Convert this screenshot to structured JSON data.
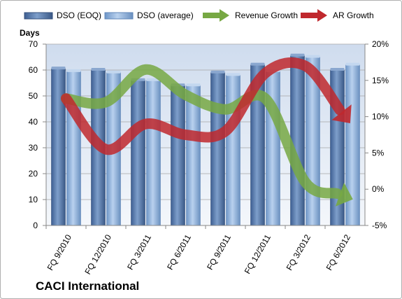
{
  "chart_data": {
    "type": "bar",
    "title": "CACI International",
    "ylabel": "Days",
    "categories": [
      "FQ 9/2010",
      "FQ 12/2010",
      "FQ 3/2011",
      "FQ 6/2011",
      "FQ 9/2011",
      "FQ 12/2011",
      "FQ 3/2012",
      "FQ 6/2012"
    ],
    "ylim": [
      0,
      70
    ],
    "yticks": [
      0,
      10,
      20,
      30,
      40,
      50,
      60,
      70
    ],
    "y2lim": [
      -5,
      20
    ],
    "y2ticks": [
      "-5%",
      "0%",
      "5%",
      "10%",
      "15%",
      "20%"
    ],
    "series": [
      {
        "name": "DSO (EOQ)",
        "type": "bar",
        "axis": "left",
        "color": "#5b7fb3",
        "values": [
          60.5,
          60,
          56,
          54,
          59,
          62,
          65.5,
          60
        ]
      },
      {
        "name": "DSO (average)",
        "type": "bar",
        "axis": "left",
        "color": "#8eb4e3",
        "values": [
          59.5,
          59,
          56,
          54,
          58,
          59.5,
          65,
          62
        ]
      },
      {
        "name": "Revenue Growth",
        "type": "line",
        "axis": "right",
        "color": "#77a843",
        "values": [
          12.5,
          12,
          16.5,
          13,
          11,
          12.5,
          1,
          -1
        ]
      },
      {
        "name": "AR Growth",
        "type": "line",
        "axis": "right",
        "color": "#c0282d",
        "values": [
          12.5,
          5.5,
          9,
          7.5,
          8,
          16,
          17,
          10
        ]
      }
    ],
    "legend": "top",
    "grid": true
  }
}
